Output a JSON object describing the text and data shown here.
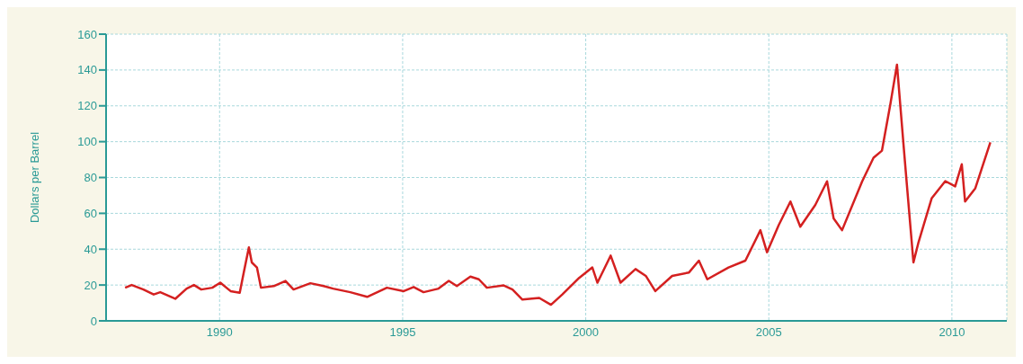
{
  "chart_data": {
    "type": "line",
    "ylabel": "Dollars per Barrel",
    "xlim": [
      1986.9,
      2011.5
    ],
    "xticks": [
      1990,
      1995,
      2000,
      2005,
      2010
    ],
    "ylim": [
      0,
      160
    ],
    "yticks": [
      0,
      20,
      40,
      60,
      80,
      100,
      120,
      140,
      160
    ],
    "grid": true,
    "marker": "none",
    "line_style": "solid",
    "series": [
      {
        "color": "#d42020",
        "x": [
          1987.42,
          1987.6,
          1987.92,
          1988.2,
          1988.38,
          1988.79,
          1989.1,
          1989.3,
          1989.5,
          1989.8,
          1990.02,
          1990.3,
          1990.55,
          1990.66,
          1990.8,
          1990.88,
          1991.02,
          1991.13,
          1991.48,
          1991.8,
          1992.02,
          1992.48,
          1992.84,
          1993.1,
          1993.57,
          1994.03,
          1994.57,
          1995.03,
          1995.3,
          1995.57,
          1995.98,
          1996.26,
          1996.48,
          1996.85,
          1997.08,
          1997.3,
          1997.76,
          1998.0,
          1998.27,
          1998.73,
          1999.05,
          1999.36,
          1999.82,
          2000.18,
          2000.32,
          2000.68,
          2000.95,
          2001.36,
          2001.64,
          2001.9,
          2002.36,
          2002.82,
          2003.09,
          2003.32,
          2003.9,
          2004.36,
          2004.77,
          2004.95,
          2005.27,
          2005.59,
          2005.86,
          2006.27,
          2006.59,
          2006.77,
          2007.0,
          2007.55,
          2007.86,
          2008.09,
          2008.32,
          2008.5,
          2008.68,
          2008.77,
          2008.95,
          2009.09,
          2009.45,
          2009.82,
          2010.09,
          2010.27,
          2010.36,
          2010.64,
          2011.05
        ],
        "values": [
          18.5,
          20,
          17.5,
          14.7,
          16,
          12.3,
          18,
          20,
          17.5,
          18.5,
          21.3,
          16.6,
          15.7,
          27,
          41,
          32.6,
          29.8,
          18.5,
          19.4,
          22.3,
          17.5,
          21,
          19.4,
          18,
          16,
          13.4,
          18.5,
          16.6,
          18.9,
          16,
          18,
          22.3,
          19.4,
          24.7,
          23.2,
          18.5,
          19.8,
          17.5,
          11.9,
          12.8,
          9,
          14.7,
          24,
          29.8,
          21.3,
          36.4,
          21.3,
          28.9,
          25.1,
          16.6,
          25.1,
          27,
          33.6,
          23.2,
          29.8,
          33.6,
          50.6,
          38.3,
          53.4,
          66.6,
          52.5,
          64.7,
          77.9,
          57.2,
          50.6,
          77.9,
          91,
          95,
          121,
          143,
          98,
          76,
          32.6,
          44,
          68.5,
          78,
          75,
          87.4,
          66.6,
          74,
          99.6
        ]
      }
    ]
  }
}
